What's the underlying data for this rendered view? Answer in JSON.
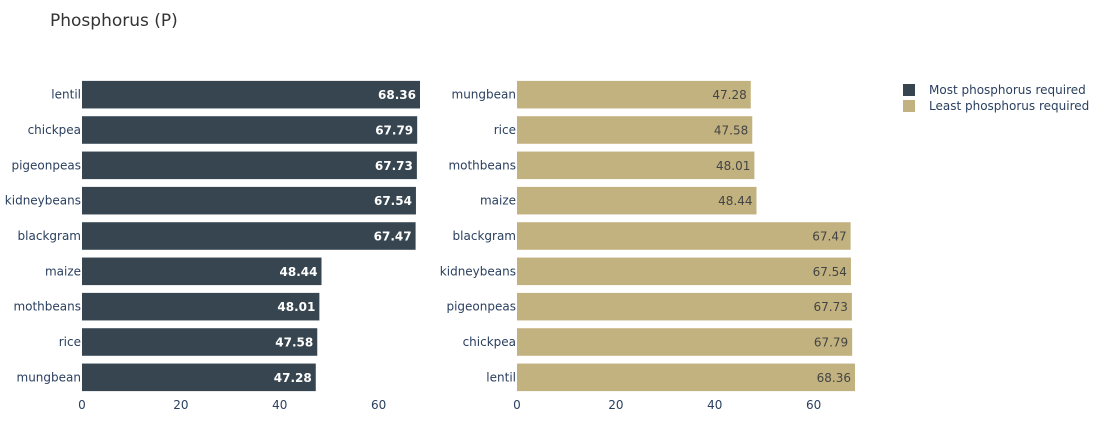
{
  "chart_data": {
    "type": "bar",
    "orientation": "horizontal",
    "title": "Phosphorus (P)",
    "xlim": [
      0,
      68.36
    ],
    "x_ticks": [
      0,
      20,
      40,
      60
    ],
    "grid": false,
    "legend_placement": "top-right",
    "series": [
      {
        "name": "Most phosphorus required",
        "color": "#36454f",
        "label_color": "#ffffff",
        "categories": [
          "lentil",
          "chickpea",
          "pigeonpeas",
          "kidneybeans",
          "blackgram",
          "maize",
          "mothbeans",
          "rice",
          "mungbean"
        ],
        "values": [
          68.36,
          67.79,
          67.73,
          67.54,
          67.47,
          48.44,
          48.01,
          47.58,
          47.28
        ],
        "value_labels": [
          "68.36",
          "67.79",
          "67.73",
          "67.54",
          "67.47",
          "48.44",
          "48.01",
          "47.58",
          "47.28"
        ]
      },
      {
        "name": "Least phosphorus required",
        "color": "#c2b280",
        "label_color": "#444444",
        "categories": [
          "mungbean",
          "rice",
          "mothbeans",
          "maize",
          "blackgram",
          "kidneybeans",
          "pigeonpeas",
          "chickpea",
          "lentil"
        ],
        "values": [
          47.28,
          47.58,
          48.01,
          48.44,
          67.47,
          67.54,
          67.73,
          67.79,
          68.36
        ],
        "value_labels": [
          "47.28",
          "47.58",
          "48.01",
          "48.44",
          "67.47",
          "67.54",
          "67.73",
          "67.79",
          "68.36"
        ]
      }
    ]
  }
}
